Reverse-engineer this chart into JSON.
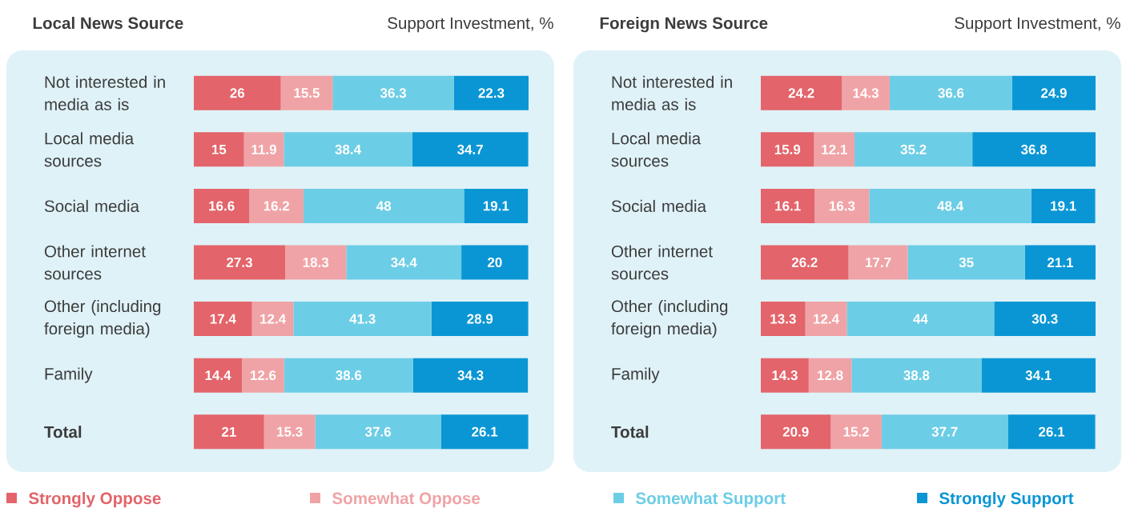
{
  "chart_data": [
    {
      "type": "bar",
      "orientation": "horizontal",
      "stacked": true,
      "data_labels": true,
      "tick_labels": "y",
      "legend": "bottom",
      "title": "Local News Source",
      "subtitle": "Support Investment, %",
      "categories": [
        "Not interested in media as is",
        "Local media sources",
        "Social media",
        "Other internet sources",
        "Other (including foreign media)",
        "Family",
        "**Total**"
      ],
      "series": [
        {
          "name": "Strongly Oppose",
          "color": "#e3646a",
          "values": [
            26,
            15,
            16.6,
            27.3,
            17.4,
            14.4,
            21
          ]
        },
        {
          "name": "Somewhat Oppose",
          "color": "#f0a3a6",
          "values": [
            15.5,
            11.9,
            16.2,
            18.3,
            12.4,
            12.6,
            15.3
          ]
        },
        {
          "name": "Somewhat Support",
          "color": "#6ccde6",
          "values": [
            36.3,
            38.4,
            48,
            34.4,
            41.3,
            38.6,
            37.6
          ]
        },
        {
          "name": "Strongly Support",
          "color": "#0a96d4",
          "values": [
            22.3,
            34.7,
            19.1,
            20,
            28.9,
            34.3,
            26.1
          ]
        }
      ]
    },
    {
      "type": "bar",
      "orientation": "horizontal",
      "stacked": true,
      "data_labels": true,
      "tick_labels": "y",
      "title": "Foreign News Source",
      "subtitle": "Support Investment, %",
      "categories": [
        "Not interested in media as is",
        "Local media sources",
        "Social media",
        "Other internet sources",
        "Other (including foreign media)",
        "Family",
        "**Total**"
      ],
      "series": [
        {
          "color": "#e3646a",
          "values": [
            24.2,
            15.9,
            16.1,
            26.2,
            13.3,
            14.3,
            20.9
          ]
        },
        {
          "color": "#f0a3a6",
          "values": [
            14.3,
            12.1,
            16.3,
            17.7,
            12.4,
            12.8,
            15.2
          ]
        },
        {
          "color": "#6ccde6",
          "values": [
            36.6,
            35.2,
            48.4,
            35,
            44,
            38.8,
            37.7
          ]
        },
        {
          "color": "#0a96d4",
          "values": [
            24.9,
            36.8,
            19.1,
            21.1,
            30.3,
            34.1,
            26.1
          ]
        }
      ]
    }
  ]
}
